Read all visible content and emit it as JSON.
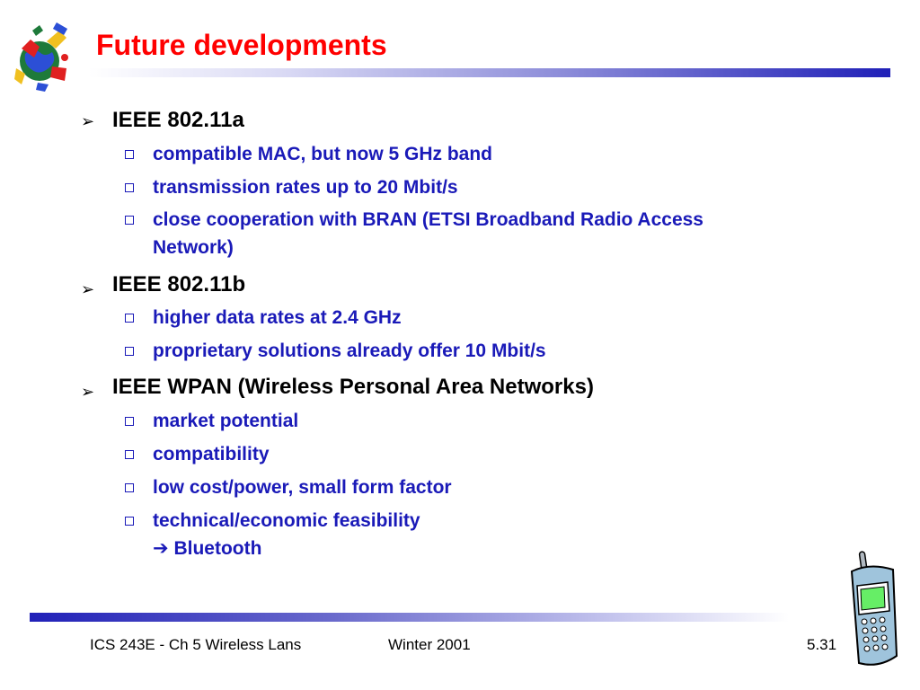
{
  "slide": {
    "title": "Future developments",
    "items": [
      {
        "label": "IEEE 802.11a",
        "subitems": [
          "compatible MAC, but now 5 GHz band",
          "transmission rates up to 20 Mbit/s",
          "close cooperation with BRAN (ETSI Broadband Radio Access",
          "Network)"
        ]
      },
      {
        "label": "IEEE 802.11b",
        "subitems": [
          "higher data rates at 2.4 GHz",
          "proprietary solutions already offer 10 Mbit/s"
        ]
      },
      {
        "label": "IEEE WPAN (Wireless Personal Area Networks)",
        "subitems": [
          "market potential",
          "compatibility",
          "low cost/power, small form factor",
          "technical/economic feasibility",
          "Bluetooth"
        ]
      }
    ],
    "arrow_glyph": "➔",
    "bullet_glyph": "➢"
  },
  "footer": {
    "course": "ICS 243E - Ch 5 Wireless Lans",
    "term": "Winter 2001",
    "page": "5.31"
  },
  "colors": {
    "title": "#ff0000",
    "subitem": "#1a1ab8",
    "bar": "#2020b8"
  },
  "icons": {
    "logo": "globe-telecom-clipart-icon",
    "phone": "mobile-phone-icon"
  }
}
